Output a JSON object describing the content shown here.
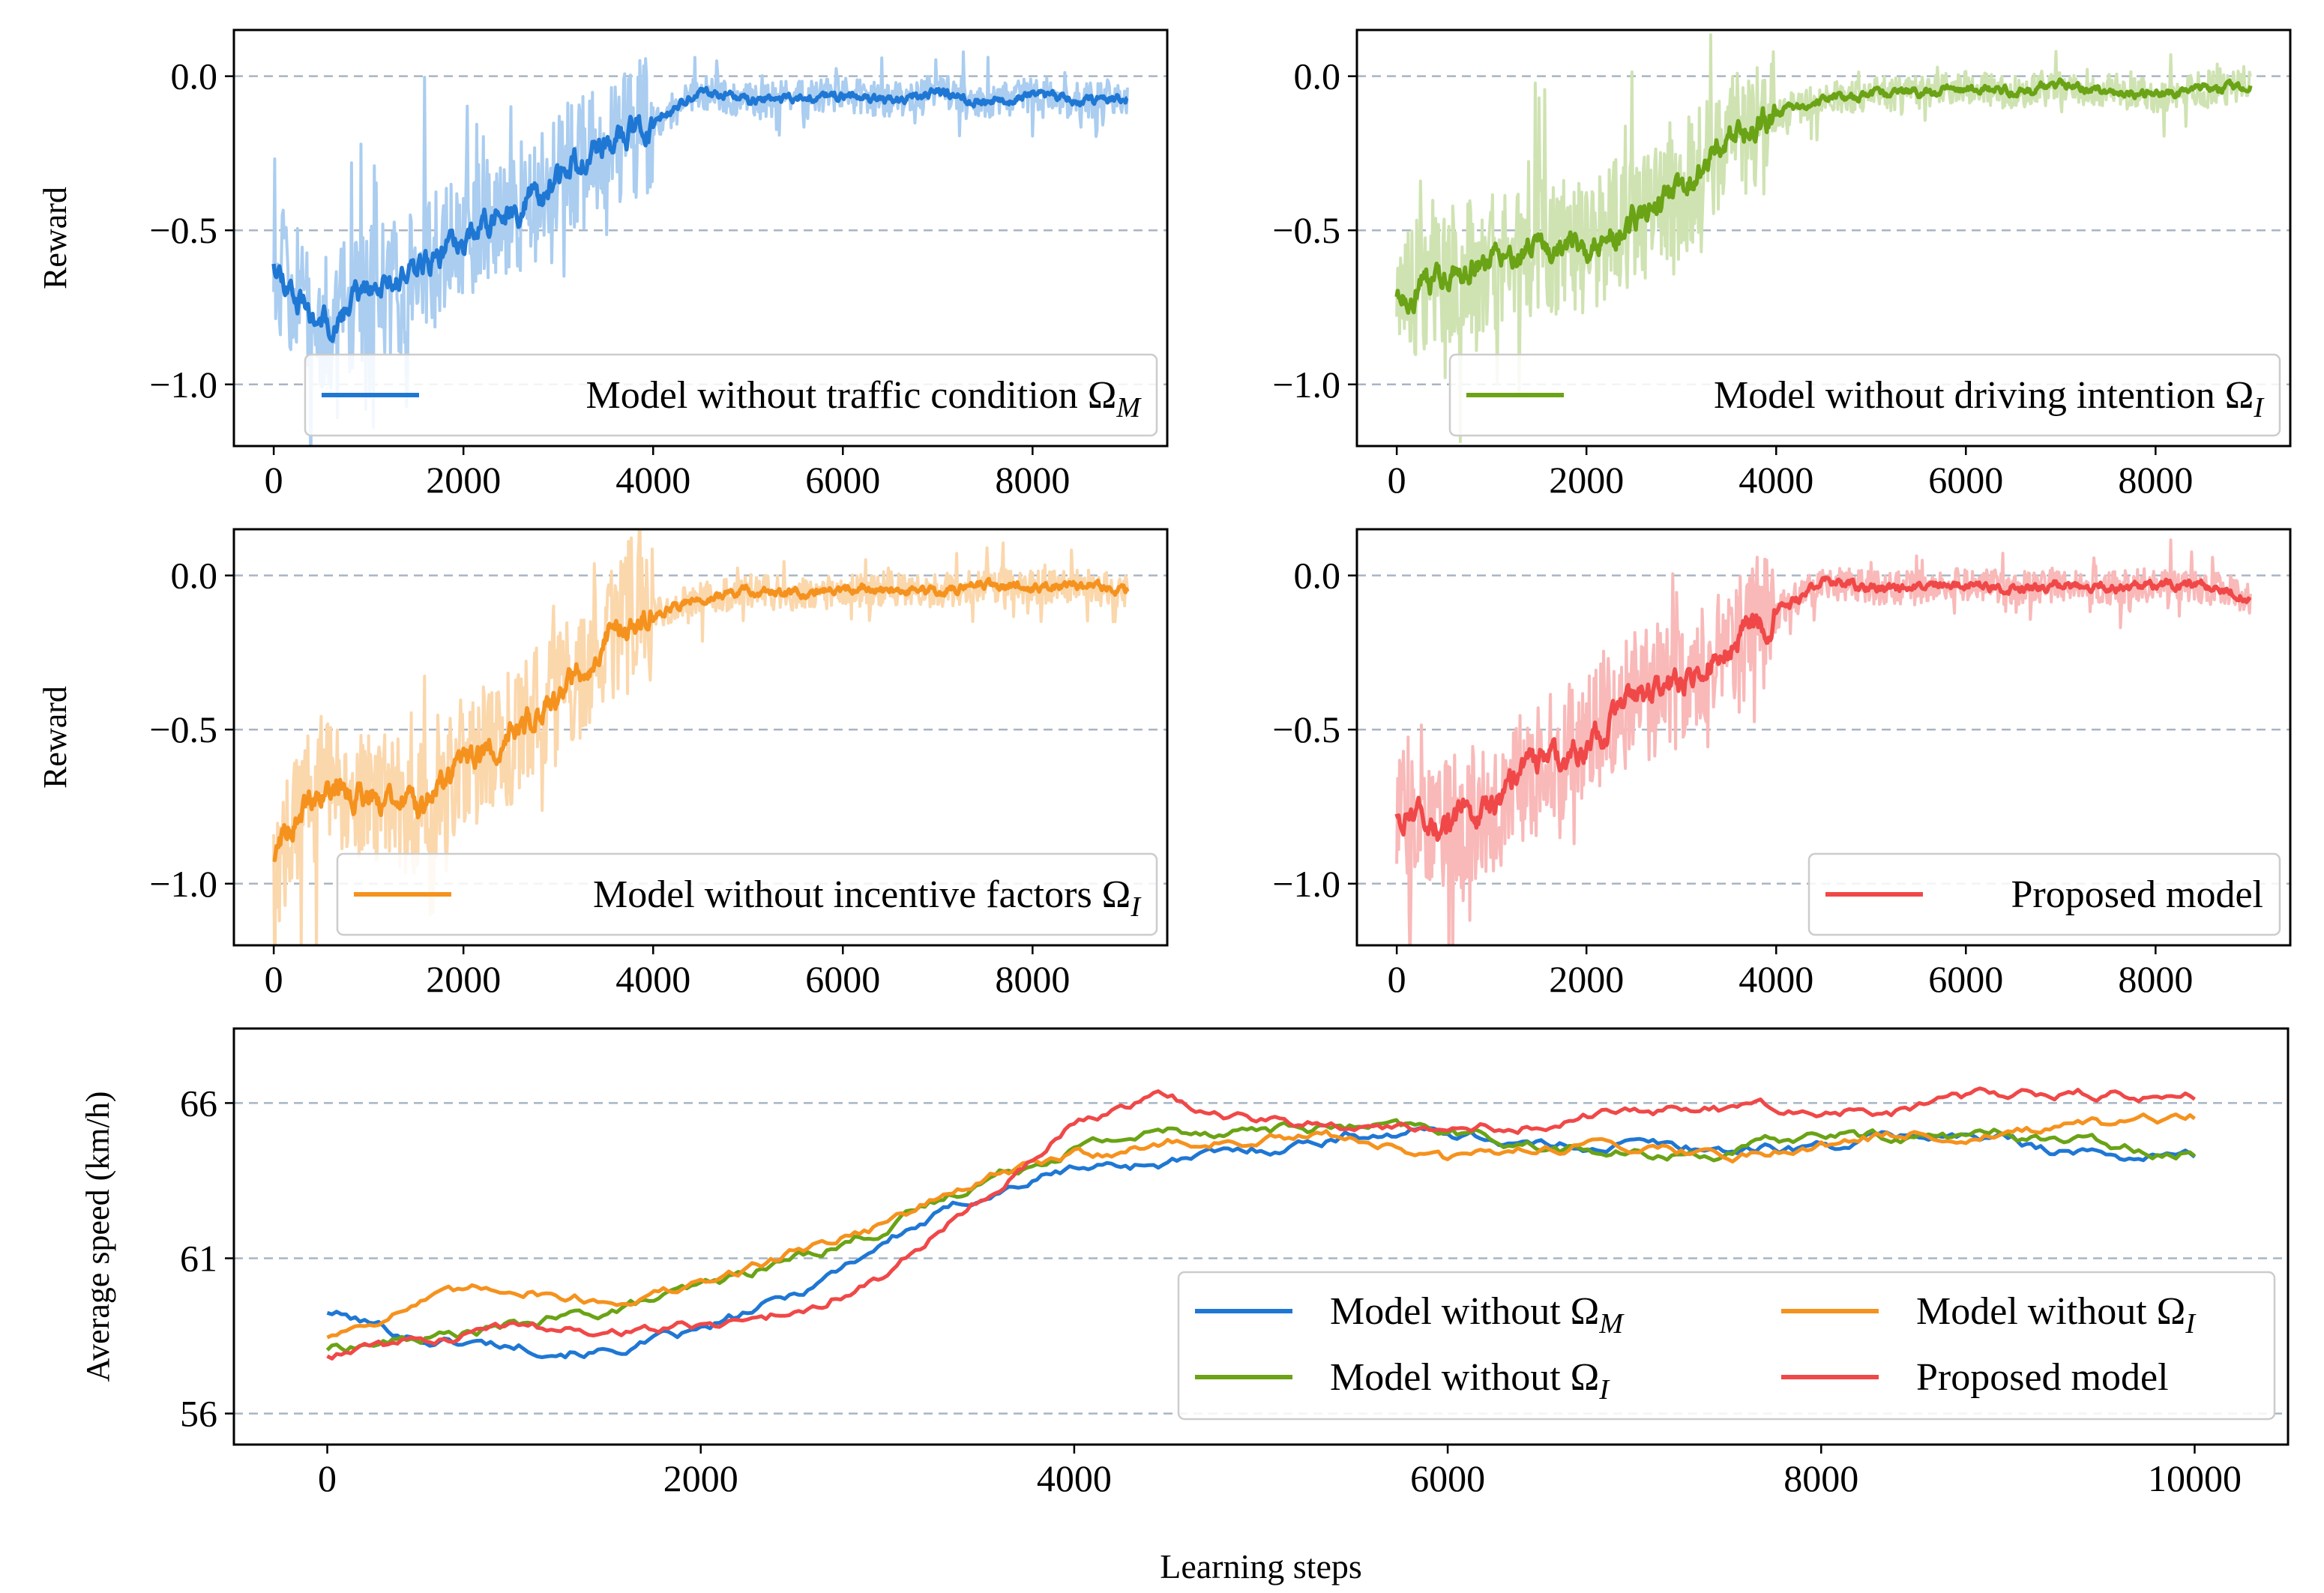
{
  "colors": {
    "blue": "#1f77d4",
    "blue_light": "#aacdf0",
    "green": "#6aa315",
    "green_light": "#cfe3b2",
    "orange": "#f5921e",
    "orange_light": "#fbd7ac",
    "red": "#f04848",
    "red_light": "#f9b9b9",
    "grid": "#a7b5c4",
    "axis": "#000000"
  },
  "chart_data": [
    {
      "id": "reward-no-traffic",
      "type": "line",
      "ylabel": "Reward",
      "xlim": [
        -420,
        9420
      ],
      "ylim": [
        -1.2,
        0.15
      ],
      "xticks": [
        0,
        2000,
        4000,
        6000,
        8000
      ],
      "xtick_labels": [
        "0",
        "2000",
        "4000",
        "6000",
        "8000"
      ],
      "yticks": [
        0.0,
        -0.5,
        -1.0
      ],
      "ytick_labels": [
        "0.0",
        "−0.5",
        "−1.0"
      ],
      "grid": "horizontal dashed",
      "legend": {
        "position": "lower-right",
        "label": "Model without traffic condition Ω",
        "subscript": "M"
      },
      "color": "blue",
      "raw_color": "blue_light",
      "x": [
        0,
        500,
        1000,
        1500,
        2000,
        2500,
        3000,
        3500,
        4000,
        4500,
        5000,
        5500,
        6000,
        6500,
        7000,
        7500,
        8000,
        8500,
        9000
      ],
      "smoothed": [
        -0.6,
        -0.82,
        -0.7,
        -0.65,
        -0.52,
        -0.45,
        -0.33,
        -0.22,
        -0.15,
        -0.05,
        -0.08,
        -0.07,
        -0.06,
        -0.08,
        -0.05,
        -0.09,
        -0.06,
        -0.08,
        -0.07
      ],
      "raw_seed": 11
    },
    {
      "id": "reward-no-intention",
      "type": "line",
      "ylabel": "",
      "xlim": [
        -420,
        9420
      ],
      "ylim": [
        -1.2,
        0.15
      ],
      "xticks": [
        0,
        2000,
        4000,
        6000,
        8000
      ],
      "xtick_labels": [
        "0",
        "2000",
        "4000",
        "6000",
        "8000"
      ],
      "yticks": [
        0.0,
        -0.5,
        -1.0
      ],
      "ytick_labels": [
        "0.0",
        "−0.5",
        "−1.0"
      ],
      "grid": "horizontal dashed",
      "legend": {
        "position": "lower-right",
        "label": "Model without driving intention Ω",
        "subscript": "I"
      },
      "color": "green",
      "raw_color": "green_light",
      "x": [
        0,
        500,
        1000,
        1500,
        2000,
        2500,
        3000,
        3500,
        4000,
        4500,
        5000,
        5500,
        6000,
        6500,
        7000,
        7500,
        8000,
        8500,
        9000
      ],
      "smoothed": [
        -0.72,
        -0.65,
        -0.6,
        -0.55,
        -0.55,
        -0.45,
        -0.38,
        -0.2,
        -0.12,
        -0.07,
        -0.06,
        -0.05,
        -0.04,
        -0.05,
        -0.03,
        -0.05,
        -0.06,
        -0.04,
        -0.03
      ],
      "raw_seed": 23
    },
    {
      "id": "reward-no-incentive",
      "type": "line",
      "ylabel": "Reward",
      "xlim": [
        -420,
        9420
      ],
      "ylim": [
        -1.2,
        0.15
      ],
      "xticks": [
        0,
        2000,
        4000,
        6000,
        8000
      ],
      "xtick_labels": [
        "0",
        "2000",
        "4000",
        "6000",
        "8000"
      ],
      "yticks": [
        0.0,
        -0.5,
        -1.0
      ],
      "ytick_labels": [
        "0.0",
        "−0.5",
        "−1.0"
      ],
      "grid": "horizontal dashed",
      "legend": {
        "position": "lower-right",
        "label": "Model without incentive factors Ω",
        "subscript": "I"
      },
      "color": "orange",
      "raw_color": "orange_light",
      "x": [
        0,
        500,
        1000,
        1500,
        2000,
        2500,
        3000,
        3500,
        4000,
        4500,
        5000,
        5500,
        6000,
        6500,
        7000,
        7500,
        8000,
        8500,
        9000
      ],
      "smoothed": [
        -0.9,
        -0.68,
        -0.72,
        -0.75,
        -0.62,
        -0.52,
        -0.4,
        -0.2,
        -0.12,
        -0.07,
        -0.05,
        -0.06,
        -0.05,
        -0.04,
        -0.05,
        -0.03,
        -0.04,
        -0.03,
        -0.05
      ],
      "raw_seed": 37
    },
    {
      "id": "reward-proposed",
      "type": "line",
      "ylabel": "",
      "xlim": [
        -420,
        9420
      ],
      "ylim": [
        -1.2,
        0.15
      ],
      "xticks": [
        0,
        2000,
        4000,
        6000,
        8000
      ],
      "xtick_labels": [
        "0",
        "2000",
        "4000",
        "6000",
        "8000"
      ],
      "yticks": [
        0.0,
        -0.5,
        -1.0
      ],
      "ytick_labels": [
        "0.0",
        "−0.5",
        "−1.0"
      ],
      "grid": "horizontal dashed",
      "legend": {
        "position": "lower-right",
        "label": "Proposed model",
        "subscript": ""
      },
      "color": "red",
      "raw_color": "red_light",
      "x": [
        0,
        500,
        1000,
        1500,
        2000,
        2500,
        3000,
        3500,
        4000,
        4500,
        5000,
        5500,
        6000,
        6500,
        7000,
        7500,
        8000,
        8500,
        9000
      ],
      "smoothed": [
        -0.75,
        -0.82,
        -0.75,
        -0.6,
        -0.55,
        -0.4,
        -0.35,
        -0.22,
        -0.12,
        -0.02,
        -0.04,
        -0.04,
        -0.03,
        -0.04,
        -0.03,
        -0.04,
        -0.03,
        -0.03,
        -0.07
      ],
      "raw_seed": 53
    },
    {
      "id": "speed",
      "type": "line",
      "xlabel": "Learning steps",
      "ylabel": "Average speed (km/h)",
      "xlim": [
        -500,
        10500
      ],
      "ylim": [
        55.0,
        68.4
      ],
      "xticks": [
        0,
        2000,
        4000,
        6000,
        8000,
        10000
      ],
      "xtick_labels": [
        "0",
        "2000",
        "4000",
        "6000",
        "8000",
        "10000"
      ],
      "yticks": [
        66,
        61,
        56
      ],
      "ytick_labels": [
        "66",
        "61",
        "56"
      ],
      "grid": "horizontal dashed",
      "legend": {
        "position": "lower-right",
        "columns": 2
      },
      "x": [
        0,
        500,
        1000,
        1500,
        2000,
        2500,
        3000,
        3500,
        4000,
        4500,
        5000,
        5500,
        6000,
        6500,
        7000,
        7500,
        8000,
        8500,
        9000,
        9500,
        10000
      ],
      "series": [
        {
          "name": "Model without Ω",
          "subscript": "M",
          "color": "blue",
          "values": [
            59.3,
            58.4,
            58.2,
            58.0,
            58.6,
            59.8,
            61.6,
            63.0,
            63.9,
            64.1,
            64.5,
            65.0,
            65.1,
            64.6,
            64.7,
            64.5,
            64.6,
            65.0,
            64.8,
            64.3,
            64.3
          ]
        },
        {
          "name": "Model without Ω",
          "subscript": "I",
          "color": "green",
          "values": [
            58.1,
            58.4,
            58.8,
            59.3,
            60.0,
            61.0,
            62.0,
            63.5,
            64.6,
            65.1,
            65.2,
            65.2,
            65.1,
            64.6,
            64.3,
            64.4,
            65.0,
            64.9,
            65.0,
            64.7,
            64.4
          ]
        },
        {
          "name": "Model without Ω",
          "subscript": "I",
          "color": "orange",
          "values": [
            58.5,
            59.6,
            60.1,
            59.6,
            60.1,
            61.2,
            62.2,
            63.5,
            64.3,
            64.7,
            64.8,
            64.9,
            64.1,
            64.6,
            64.7,
            64.3,
            64.7,
            65.0,
            65.0,
            65.2,
            65.5
          ]
        },
        {
          "name": "Proposed model",
          "subscript": "",
          "color": "red",
          "values": [
            57.9,
            58.3,
            58.8,
            58.7,
            58.8,
            59.3,
            60.5,
            63.0,
            65.3,
            66.2,
            65.4,
            65.3,
            65.0,
            65.4,
            65.8,
            65.8,
            65.7,
            65.8,
            66.3,
            66.3,
            66.2
          ]
        }
      ]
    }
  ]
}
